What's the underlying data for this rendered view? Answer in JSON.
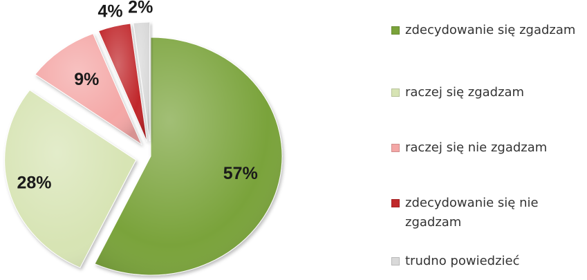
{
  "chart_data": {
    "type": "pie",
    "title": "",
    "slices": [
      {
        "label": "zdecydowanie się zgadzam",
        "value": 57,
        "display": "57%",
        "color": "#7aa33a",
        "exploded": false
      },
      {
        "label": "raczej się zgadzam",
        "value": 28,
        "display": "28%",
        "color": "#d7e4b4",
        "exploded": true
      },
      {
        "label": "raczej się nie zgadzam",
        "value": 9,
        "display": "9%",
        "color": "#f4a7a6",
        "exploded": true
      },
      {
        "label": "zdecydowanie się nie zgadzam",
        "value": 4,
        "display": "4%",
        "color": "#c0282a",
        "exploded": true
      },
      {
        "label": "trudno powiedzieć",
        "value": 2,
        "display": "2%",
        "color": "#d9d9d9",
        "exploded": true
      }
    ],
    "legend_position": "right"
  }
}
